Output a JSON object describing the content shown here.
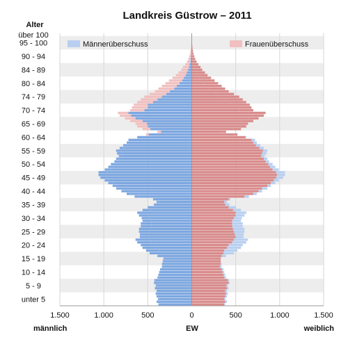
{
  "chart_data": {
    "type": "bar",
    "title": "Landkreis Güstrow – 2011",
    "y_axis_title": "Alter",
    "xlabel": "EW",
    "left_label": "männlich",
    "right_label": "weiblich",
    "x_ticks": [
      "1.500",
      "1.000",
      "500",
      "0",
      "500",
      "1.000",
      "1.500"
    ],
    "x_tick_values": [
      -1500,
      -1000,
      -500,
      0,
      500,
      1000,
      1500
    ],
    "xlim": [
      -1500,
      1500
    ],
    "age_group_labels": [
      "unter 5",
      "5 - 9",
      "10 - 14",
      "15 - 19",
      "20 - 24",
      "25 - 29",
      "30 - 34",
      "35 - 39",
      "40 - 44",
      "45 - 49",
      "50 - 54",
      "55 - 59",
      "60 - 64",
      "65 - 69",
      "70 - 74",
      "74 - 79",
      "80 - 84",
      "84 - 89",
      "90 - 94",
      "95 - 100",
      "über 100"
    ],
    "legend": {
      "male_surplus": "Männerüberschuss",
      "female_surplus": "Frauenüberschuss",
      "placement": "top"
    },
    "colors": {
      "male": "#7da7e0",
      "female": "#d98b8b",
      "male_surplus": "#b8cff0",
      "female_surplus": "#f0c0c0",
      "stripe": "#ededed"
    },
    "ages": [
      0,
      1,
      2,
      3,
      4,
      5,
      6,
      7,
      8,
      9,
      10,
      11,
      12,
      13,
      14,
      15,
      16,
      17,
      18,
      19,
      20,
      21,
      22,
      23,
      24,
      25,
      26,
      27,
      28,
      29,
      30,
      31,
      32,
      33,
      34,
      35,
      36,
      37,
      38,
      39,
      40,
      41,
      42,
      43,
      44,
      45,
      46,
      47,
      48,
      49,
      50,
      51,
      52,
      53,
      54,
      55,
      56,
      57,
      58,
      59,
      60,
      61,
      62,
      63,
      64,
      65,
      66,
      67,
      68,
      69,
      70,
      71,
      72,
      73,
      74,
      75,
      76,
      77,
      78,
      79,
      80,
      81,
      82,
      83,
      84,
      85,
      86,
      87,
      88,
      89,
      90,
      91,
      92,
      93,
      94,
      95,
      96,
      97,
      98,
      99,
      100
    ],
    "series": [
      {
        "name": "männlich",
        "values": [
          380,
          400,
          385,
          400,
          410,
          400,
          420,
          410,
          430,
          425,
          390,
          380,
          370,
          360,
          340,
          340,
          330,
          320,
          390,
          480,
          520,
          560,
          580,
          620,
          640,
          590,
          590,
          600,
          600,
          580,
          580,
          560,
          570,
          600,
          620,
          560,
          500,
          430,
          400,
          440,
          650,
          740,
          800,
          860,
          900,
          950,
          990,
          1040,
          1060,
          1060,
          990,
          950,
          920,
          880,
          860,
          830,
          850,
          860,
          820,
          780,
          740,
          720,
          620,
          490,
          350,
          470,
          500,
          510,
          560,
          640,
          690,
          720,
          540,
          500,
          500,
          440,
          390,
          340,
          290,
          250,
          200,
          170,
          140,
          110,
          90,
          70,
          55,
          40,
          30,
          25,
          15,
          12,
          9,
          6,
          4,
          3,
          2,
          1,
          1,
          1,
          1
        ]
      },
      {
        "name": "weiblich",
        "values": [
          370,
          380,
          370,
          380,
          390,
          380,
          400,
          395,
          420,
          410,
          370,
          360,
          350,
          340,
          320,
          330,
          330,
          330,
          340,
          360,
          370,
          400,
          420,
          460,
          480,
          500,
          490,
          480,
          470,
          460,
          460,
          460,
          480,
          500,
          500,
          470,
          420,
          380,
          370,
          420,
          600,
          700,
          760,
          800,
          860,
          900,
          930,
          960,
          970,
          960,
          920,
          890,
          870,
          840,
          820,
          790,
          800,
          810,
          770,
          730,
          700,
          680,
          610,
          520,
          390,
          560,
          620,
          640,
          700,
          760,
          820,
          840,
          700,
          680,
          660,
          620,
          580,
          540,
          480,
          420,
          380,
          340,
          300,
          260,
          220,
          180,
          150,
          120,
          100,
          75,
          55,
          40,
          30,
          20,
          14,
          9,
          6,
          4,
          3,
          2,
          2
        ]
      }
    ]
  }
}
